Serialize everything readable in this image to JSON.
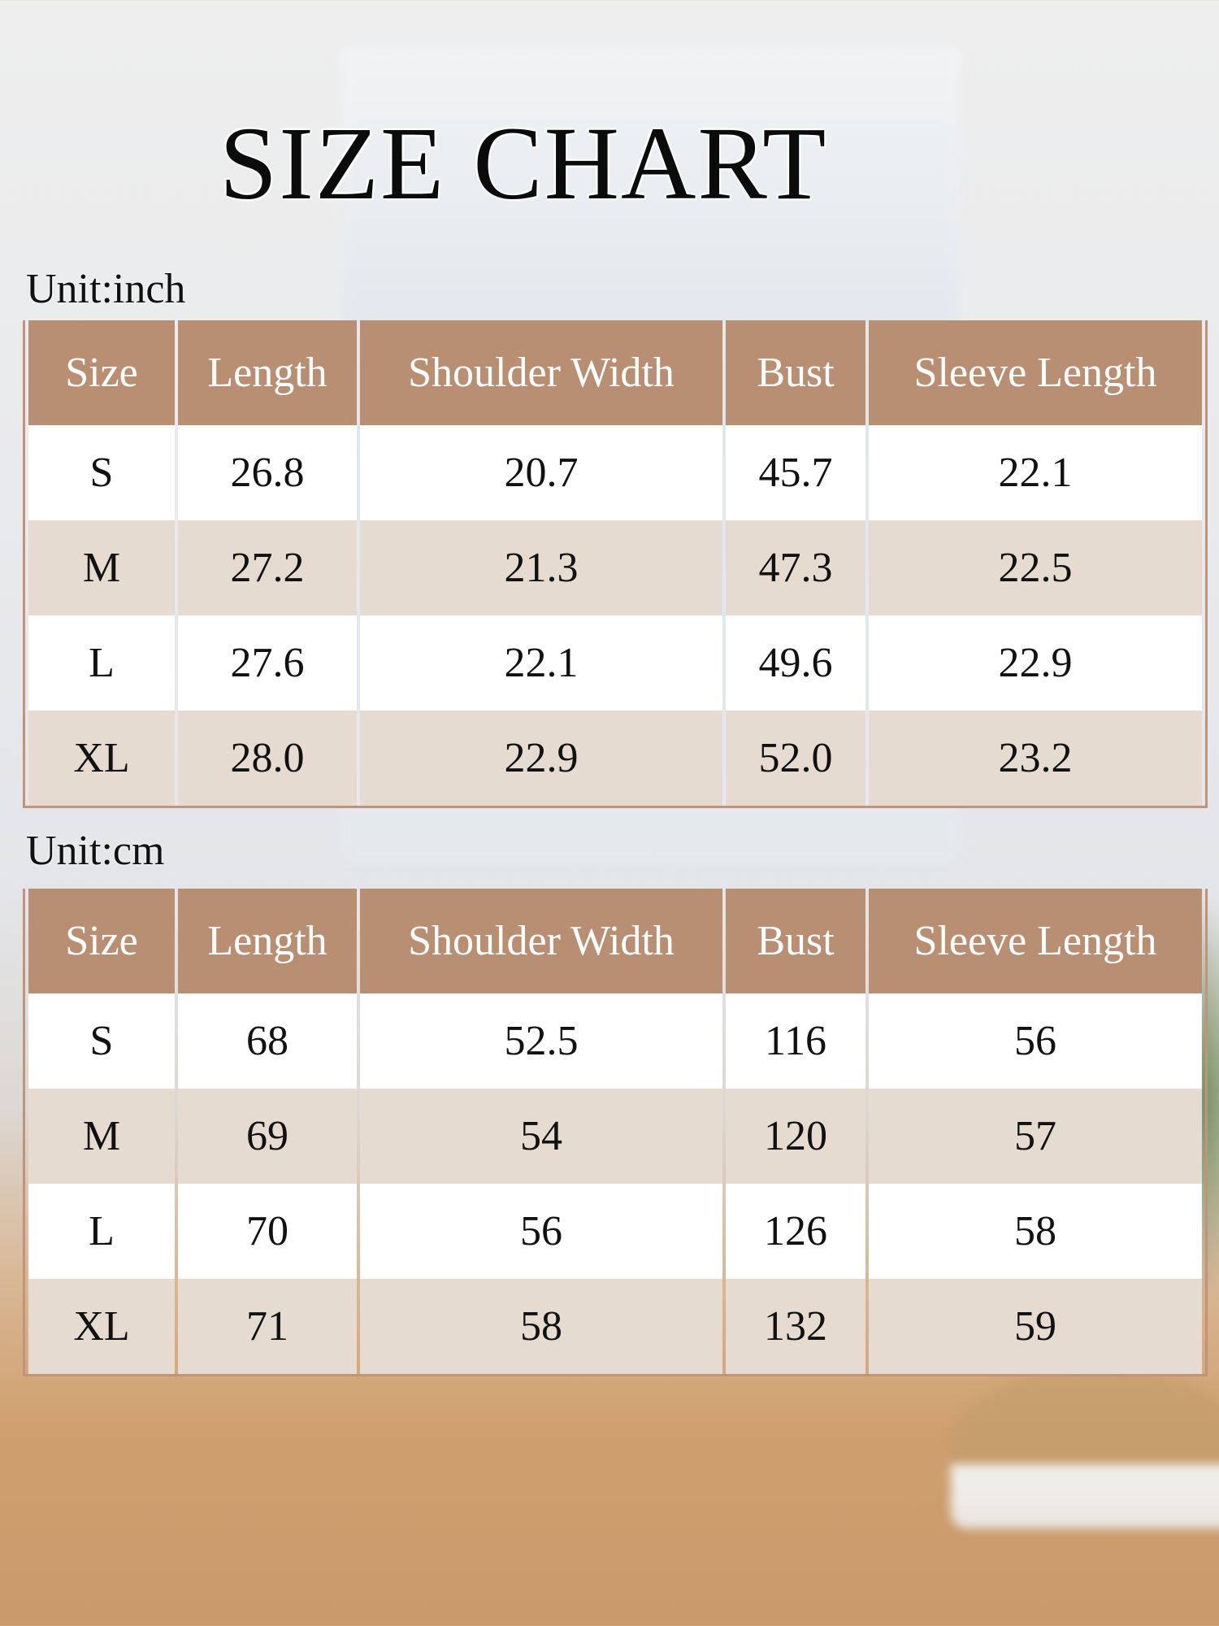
{
  "title": "SIZE CHART",
  "colors": {
    "header": "#b98f74",
    "row_alt": "#e6dbd0",
    "row": "#ffffff",
    "header_text": "#ffffff"
  },
  "columns": [
    "Size",
    "Length",
    "Shoulder Width",
    "Bust",
    "Sleeve Length"
  ],
  "tables": [
    {
      "unit_label": "Unit:inch",
      "rows": [
        [
          "S",
          "26.8",
          "20.7",
          "45.7",
          "22.1"
        ],
        [
          "M",
          "27.2",
          "21.3",
          "47.3",
          "22.5"
        ],
        [
          "L",
          "27.6",
          "22.1",
          "49.6",
          "22.9"
        ],
        [
          "XL",
          "28.0",
          "22.9",
          "52.0",
          "23.2"
        ]
      ]
    },
    {
      "unit_label": "Unit:cm",
      "rows": [
        [
          "S",
          "68",
          "52.5",
          "116",
          "56"
        ],
        [
          "M",
          "69",
          "54",
          "120",
          "57"
        ],
        [
          "L",
          "70",
          "56",
          "126",
          "58"
        ],
        [
          "XL",
          "71",
          "58",
          "132",
          "59"
        ]
      ]
    }
  ]
}
